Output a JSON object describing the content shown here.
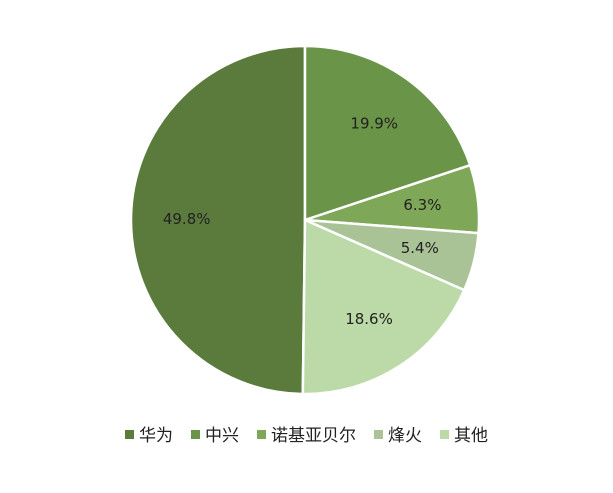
{
  "chart_data": {
    "type": "pie",
    "categories": [
      "华为",
      "中兴",
      "诺基亚贝尔",
      "烽火",
      "其他"
    ],
    "values": [
      49.8,
      19.9,
      6.3,
      5.4,
      18.6
    ],
    "value_labels": [
      "49.8%",
      "19.9%",
      "6.3%",
      "5.4%",
      "18.6%"
    ],
    "colors": [
      "#5a7b3c",
      "#6a9448",
      "#7ea858",
      "#a9c396",
      "#bcdaa8"
    ],
    "legend": "bottom"
  }
}
